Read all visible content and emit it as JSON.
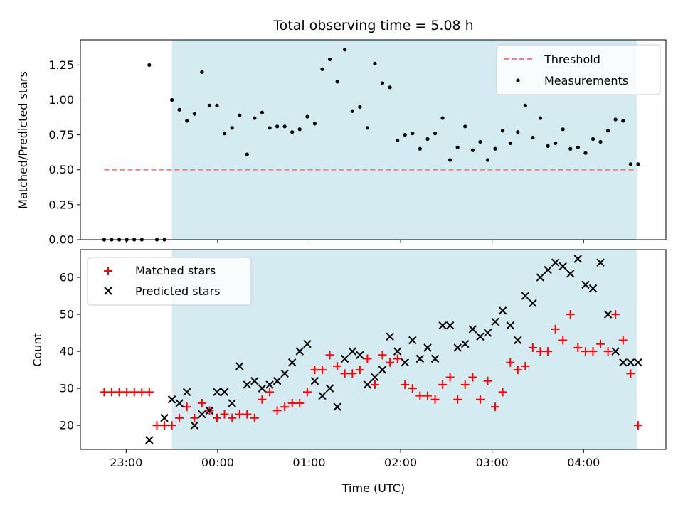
{
  "chart_data": [
    {
      "type": "scatter",
      "title": "Total observing time = 5.08 h",
      "xlabel": "",
      "ylabel": "Matched/Predicted stars",
      "ylim": [
        0,
        1.43
      ],
      "yticks": [
        0,
        0.25,
        0.5,
        0.75,
        1.0,
        1.25
      ],
      "ytick_labels": [
        "0.00",
        "0.25",
        "0.50",
        "0.75",
        "1.00",
        "1.25"
      ],
      "xlim": [
        -1.0,
        5.4
      ],
      "xticks": [
        -0.5,
        0.5,
        1.5,
        2.5,
        3.5,
        4.5
      ],
      "grid": false,
      "legend_position": "top-right",
      "legend": [
        {
          "label": "Threshold",
          "marker": "dashed-line",
          "color": "#f08080"
        },
        {
          "label": "Measurements",
          "marker": "dot",
          "color": "#000000"
        }
      ],
      "shaded_region": {
        "x_start": 0.0,
        "x_end": 5.08,
        "color": "#d4ebf2"
      },
      "series": [
        {
          "name": "Threshold",
          "type": "line",
          "color": "#f08080",
          "style": "dashed",
          "x": [
            -0.74,
            5.08
          ],
          "y": [
            0.5,
            0.5
          ]
        },
        {
          "name": "Measurements",
          "type": "scatter",
          "color": "#000000",
          "x": [
            -0.74,
            -0.658,
            -0.575,
            -0.493,
            -0.411,
            -0.329,
            -0.247,
            -0.164,
            -0.082,
            0,
            0.082,
            0.164,
            0.247,
            0.329,
            0.411,
            0.493,
            0.575,
            0.658,
            0.74,
            0.822,
            0.904,
            0.986,
            1.069,
            1.151,
            1.233,
            1.315,
            1.397,
            1.48,
            1.562,
            1.644,
            1.726,
            1.808,
            1.89,
            1.973,
            2.055,
            2.137,
            2.219,
            2.301,
            2.384,
            2.466,
            2.548,
            2.63,
            2.712,
            2.795,
            2.877,
            2.959,
            3.041,
            3.123,
            3.205,
            3.288,
            3.37,
            3.452,
            3.534,
            3.616,
            3.699,
            3.781,
            3.863,
            3.945,
            4.027,
            4.11,
            4.192,
            4.274,
            4.356,
            4.438,
            4.521,
            4.603,
            4.685,
            4.767,
            4.849,
            4.932,
            5.014,
            5.096
          ],
          "y": [
            0,
            0,
            0,
            0,
            0,
            0,
            1.25,
            0,
            0,
            1.0,
            0.93,
            0.85,
            0.9,
            1.2,
            0.96,
            0.96,
            0.76,
            0.8,
            0.89,
            0.61,
            0.87,
            0.91,
            0.8,
            0.81,
            0.81,
            0.77,
            0.79,
            0.88,
            0.83,
            1.22,
            1.29,
            1.13,
            1.36,
            0.92,
            0.95,
            0.8,
            1.26,
            1.12,
            1.09,
            0.71,
            0.75,
            0.76,
            0.65,
            0.72,
            0.76,
            0.87,
            0.57,
            0.66,
            0.81,
            0.64,
            0.7,
            0.57,
            0.65,
            0.78,
            0.69,
            0.77,
            0.96,
            0.73,
            0.87,
            0.67,
            0.69,
            0.79,
            0.65,
            0.66,
            0.62,
            0.72,
            0.7,
            0.78,
            0.86,
            0.85,
            0.54,
            0.54
          ]
        }
      ]
    },
    {
      "type": "scatter",
      "title": "",
      "xlabel": "Time (UTC)",
      "ylabel": "Count",
      "ylim": [
        13.5,
        67.5
      ],
      "yticks": [
        20,
        30,
        40,
        50,
        60
      ],
      "ytick_labels": [
        "20",
        "30",
        "40",
        "50",
        "60"
      ],
      "xlim": [
        -1.0,
        5.4
      ],
      "xticks": [
        -0.5,
        0.5,
        1.5,
        2.5,
        3.5,
        4.5
      ],
      "xtick_labels": [
        "23:00",
        "00:00",
        "01:00",
        "02:00",
        "03:00",
        "04:00"
      ],
      "grid": false,
      "legend_position": "top-left",
      "legend": [
        {
          "label": "Matched stars",
          "marker": "plus",
          "color": "#ff0000"
        },
        {
          "label": "Predicted stars",
          "marker": "x",
          "color": "#000000"
        }
      ],
      "shaded_region": {
        "x_start": 0.0,
        "x_end": 5.08,
        "color": "#d4ebf2"
      },
      "series": [
        {
          "name": "Matched stars",
          "type": "scatter",
          "marker": "plus",
          "color": "#ff0000",
          "x": [
            -0.74,
            -0.658,
            -0.575,
            -0.493,
            -0.411,
            -0.329,
            -0.247,
            -0.164,
            -0.082,
            0,
            0.082,
            0.164,
            0.247,
            0.329,
            0.411,
            0.493,
            0.575,
            0.658,
            0.74,
            0.822,
            0.904,
            0.986,
            1.069,
            1.151,
            1.233,
            1.315,
            1.397,
            1.48,
            1.562,
            1.644,
            1.726,
            1.808,
            1.89,
            1.973,
            2.055,
            2.137,
            2.219,
            2.301,
            2.384,
            2.466,
            2.548,
            2.63,
            2.712,
            2.795,
            2.877,
            2.959,
            3.041,
            3.123,
            3.205,
            3.288,
            3.37,
            3.452,
            3.534,
            3.616,
            3.699,
            3.781,
            3.863,
            3.945,
            4.027,
            4.11,
            4.192,
            4.274,
            4.356,
            4.438,
            4.521,
            4.603,
            4.685,
            4.767,
            4.849,
            4.932,
            5.014,
            5.096
          ],
          "y": [
            29,
            29,
            29,
            29,
            29,
            29,
            29,
            20,
            20,
            20,
            22,
            25,
            22,
            26,
            24,
            22,
            23,
            22,
            23,
            23,
            22,
            27,
            29,
            24,
            25,
            26,
            26,
            29,
            35,
            35,
            39,
            36,
            34,
            34,
            35,
            38,
            31,
            39,
            37,
            38,
            31,
            30,
            28,
            28,
            27,
            31,
            33,
            27,
            31,
            33,
            27,
            32,
            25,
            29,
            37,
            35,
            36,
            41,
            40,
            40,
            46,
            43,
            50,
            41,
            40,
            40,
            42,
            40,
            50,
            43,
            34,
            20
          ]
        },
        {
          "name": "Predicted stars",
          "type": "scatter",
          "marker": "x",
          "color": "#000000",
          "x": [
            -0.247,
            -0.082,
            0,
            0.082,
            0.164,
            0.247,
            0.329,
            0.411,
            0.493,
            0.575,
            0.658,
            0.74,
            0.822,
            0.904,
            0.986,
            1.069,
            1.151,
            1.233,
            1.315,
            1.397,
            1.48,
            1.562,
            1.644,
            1.726,
            1.808,
            1.89,
            1.973,
            2.055,
            2.137,
            2.219,
            2.301,
            2.384,
            2.466,
            2.548,
            2.63,
            2.712,
            2.795,
            2.877,
            2.959,
            3.041,
            3.123,
            3.205,
            3.288,
            3.37,
            3.452,
            3.534,
            3.616,
            3.699,
            3.781,
            3.863,
            3.945,
            4.027,
            4.11,
            4.192,
            4.274,
            4.356,
            4.438,
            4.521,
            4.603,
            4.685,
            4.767,
            4.849,
            4.932,
            5.014,
            5.096
          ],
          "y": [
            16,
            22,
            27,
            26,
            29,
            20,
            23,
            24,
            29,
            29,
            26,
            36,
            31,
            32,
            30,
            31,
            32,
            34,
            37,
            40,
            42,
            32,
            28,
            30,
            25,
            38,
            40,
            39,
            31,
            33,
            35,
            44,
            40,
            37,
            43,
            38,
            41,
            38,
            47,
            47,
            41,
            42,
            46,
            44,
            45,
            48,
            51,
            47,
            43,
            55,
            53,
            60,
            62,
            64,
            63,
            61,
            65,
            58,
            57,
            64,
            50,
            40,
            37,
            37,
            37
          ]
        }
      ]
    }
  ]
}
